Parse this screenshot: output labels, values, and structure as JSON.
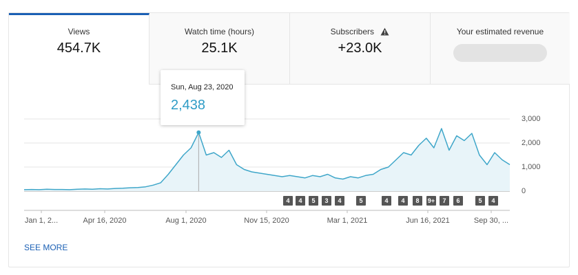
{
  "tabs": [
    {
      "label": "Views",
      "value": "454.7K"
    },
    {
      "label": "Watch time (hours)",
      "value": "25.1K"
    },
    {
      "label": "Subscribers",
      "value": "+23.0K"
    },
    {
      "label": "Your estimated revenue"
    }
  ],
  "tooltip": {
    "date": "Sun, Aug 23, 2020",
    "value": "2,438"
  },
  "see_more": "SEE MORE",
  "chart_data": {
    "type": "line",
    "color": "#3ea6c9",
    "area_color": "#e8f4f9",
    "values": [
      60,
      70,
      60,
      80,
      70,
      70,
      60,
      80,
      90,
      80,
      100,
      90,
      110,
      120,
      140,
      150,
      180,
      250,
      350,
      700,
      1100,
      1500,
      1800,
      2438,
      1500,
      1600,
      1400,
      1700,
      1100,
      900,
      800,
      750,
      700,
      650,
      600,
      650,
      600,
      550,
      650,
      600,
      700,
      550,
      500,
      600,
      550,
      650,
      700,
      900,
      1000,
      1300,
      1600,
      1500,
      1900,
      2200,
      1800,
      2600,
      1700,
      2300,
      2100,
      2400,
      1500,
      1100,
      1600,
      1300,
      1100
    ],
    "highlight": 23,
    "xtick_labels": [
      "Jan 1, 2...",
      "Apr 16, 2020",
      "Aug 1, 2020",
      "Nov 15, 2020",
      "Mar 1, 2021",
      "Jun 16, 2021",
      "Sep 30, ..."
    ],
    "ylim": [
      0,
      3000
    ],
    "yticks": [
      0,
      {
        "value": 1000,
        "label": "1,000"
      },
      {
        "value": 2000,
        "label": "2,000"
      },
      {
        "value": 3000,
        "label": "3,000"
      }
    ],
    "grid": true,
    "markers": [
      "4",
      "4",
      "5",
      "3",
      "4",
      "5",
      "4",
      "4",
      "8",
      "9+",
      "7",
      "6",
      "5",
      "4"
    ]
  }
}
